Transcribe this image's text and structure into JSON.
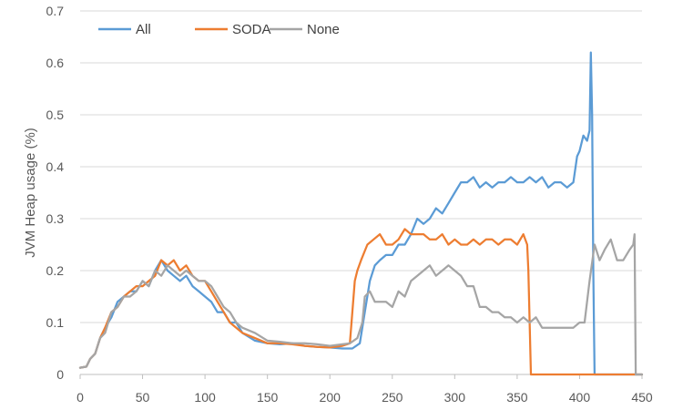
{
  "chart_data": {
    "type": "line",
    "ylabel": "JVM Heap usage (%)",
    "xlabel": "",
    "xlim": [
      0,
      450
    ],
    "ylim": [
      0,
      0.7
    ],
    "x_ticks": [
      0,
      50,
      100,
      150,
      200,
      250,
      300,
      350,
      400,
      450
    ],
    "x_tick_labels": [
      "0",
      "50",
      "100",
      "150",
      "200",
      "250",
      "300",
      "350",
      "400",
      "450"
    ],
    "y_ticks": [
      0,
      0.1,
      0.2,
      0.3,
      0.4,
      0.5,
      0.6,
      0.7
    ],
    "y_tick_labels": [
      "0",
      "0.1",
      "0.2",
      "0.3",
      "0.4",
      "0.5",
      "0.6",
      "0.7"
    ],
    "grid": "horizontal",
    "legend_position": "top-left",
    "series": [
      {
        "name": "All",
        "color": "#5B9BD5",
        "x": [
          0,
          5,
          8,
          12,
          16,
          20,
          25,
          30,
          35,
          40,
          45,
          50,
          55,
          60,
          65,
          70,
          75,
          80,
          85,
          90,
          95,
          100,
          105,
          110,
          115,
          120,
          125,
          130,
          140,
          150,
          160,
          170,
          180,
          190,
          200,
          210,
          218,
          224,
          228,
          232,
          236,
          240,
          245,
          250,
          255,
          260,
          265,
          270,
          275,
          280,
          285,
          290,
          295,
          300,
          305,
          310,
          315,
          320,
          325,
          330,
          335,
          340,
          345,
          350,
          355,
          360,
          365,
          370,
          375,
          380,
          385,
          390,
          395,
          398,
          400,
          403,
          406,
          408,
          409,
          410,
          411,
          412,
          450
        ],
        "y": [
          0.013,
          0.015,
          0.03,
          0.04,
          0.07,
          0.09,
          0.11,
          0.14,
          0.15,
          0.16,
          0.16,
          0.18,
          0.17,
          0.2,
          0.22,
          0.2,
          0.19,
          0.18,
          0.19,
          0.17,
          0.16,
          0.15,
          0.14,
          0.12,
          0.12,
          0.1,
          0.1,
          0.08,
          0.065,
          0.06,
          0.058,
          0.06,
          0.055,
          0.053,
          0.052,
          0.05,
          0.05,
          0.06,
          0.12,
          0.18,
          0.21,
          0.22,
          0.23,
          0.23,
          0.25,
          0.25,
          0.27,
          0.3,
          0.29,
          0.3,
          0.32,
          0.31,
          0.33,
          0.35,
          0.37,
          0.37,
          0.38,
          0.36,
          0.37,
          0.36,
          0.37,
          0.37,
          0.38,
          0.37,
          0.37,
          0.38,
          0.37,
          0.38,
          0.36,
          0.37,
          0.37,
          0.36,
          0.37,
          0.42,
          0.43,
          0.46,
          0.45,
          0.47,
          0.62,
          0.5,
          0.2,
          0.0,
          0.0
        ]
      },
      {
        "name": "SODA",
        "color": "#ED7D31",
        "x": [
          0,
          5,
          8,
          12,
          16,
          20,
          25,
          30,
          35,
          40,
          45,
          50,
          55,
          60,
          65,
          70,
          75,
          80,
          85,
          90,
          95,
          100,
          105,
          110,
          115,
          120,
          125,
          130,
          140,
          150,
          160,
          170,
          180,
          190,
          200,
          210,
          216,
          218,
          220,
          222,
          225,
          230,
          235,
          240,
          245,
          250,
          255,
          260,
          265,
          270,
          275,
          280,
          285,
          290,
          295,
          300,
          305,
          310,
          315,
          320,
          325,
          330,
          335,
          340,
          345,
          350,
          355,
          358,
          359,
          360,
          361,
          450
        ],
        "y": [
          0.013,
          0.015,
          0.03,
          0.04,
          0.07,
          0.09,
          0.12,
          0.13,
          0.15,
          0.16,
          0.17,
          0.17,
          0.18,
          0.19,
          0.22,
          0.21,
          0.22,
          0.2,
          0.21,
          0.19,
          0.18,
          0.18,
          0.16,
          0.14,
          0.12,
          0.1,
          0.09,
          0.08,
          0.07,
          0.06,
          0.06,
          0.058,
          0.055,
          0.053,
          0.052,
          0.055,
          0.06,
          0.12,
          0.18,
          0.2,
          0.22,
          0.25,
          0.26,
          0.27,
          0.25,
          0.25,
          0.26,
          0.28,
          0.27,
          0.27,
          0.27,
          0.26,
          0.26,
          0.27,
          0.25,
          0.26,
          0.25,
          0.25,
          0.26,
          0.25,
          0.26,
          0.26,
          0.25,
          0.26,
          0.26,
          0.25,
          0.27,
          0.25,
          0.2,
          0.1,
          0.0,
          0.0
        ]
      },
      {
        "name": "None",
        "color": "#A5A5A5",
        "x": [
          0,
          5,
          8,
          12,
          16,
          20,
          25,
          30,
          35,
          40,
          45,
          50,
          55,
          60,
          65,
          70,
          75,
          80,
          85,
          90,
          95,
          100,
          105,
          110,
          115,
          120,
          125,
          130,
          140,
          150,
          160,
          170,
          180,
          190,
          200,
          210,
          216,
          222,
          226,
          228,
          232,
          236,
          240,
          245,
          250,
          255,
          260,
          265,
          270,
          275,
          280,
          285,
          290,
          295,
          300,
          305,
          310,
          315,
          320,
          325,
          330,
          335,
          340,
          345,
          350,
          355,
          360,
          365,
          370,
          375,
          380,
          385,
          390,
          395,
          400,
          404,
          408,
          412,
          416,
          420,
          425,
          430,
          435,
          440,
          443,
          444,
          445,
          450
        ],
        "y": [
          0.013,
          0.015,
          0.03,
          0.04,
          0.07,
          0.08,
          0.12,
          0.13,
          0.15,
          0.15,
          0.16,
          0.18,
          0.17,
          0.2,
          0.19,
          0.21,
          0.2,
          0.19,
          0.2,
          0.19,
          0.18,
          0.18,
          0.17,
          0.15,
          0.13,
          0.12,
          0.1,
          0.09,
          0.08,
          0.065,
          0.063,
          0.06,
          0.06,
          0.058,
          0.055,
          0.058,
          0.06,
          0.07,
          0.1,
          0.15,
          0.16,
          0.14,
          0.14,
          0.14,
          0.13,
          0.16,
          0.15,
          0.18,
          0.19,
          0.2,
          0.21,
          0.19,
          0.2,
          0.21,
          0.2,
          0.19,
          0.17,
          0.17,
          0.13,
          0.13,
          0.12,
          0.12,
          0.11,
          0.11,
          0.1,
          0.11,
          0.1,
          0.11,
          0.09,
          0.09,
          0.09,
          0.09,
          0.09,
          0.09,
          0.1,
          0.1,
          0.18,
          0.25,
          0.22,
          0.24,
          0.26,
          0.22,
          0.22,
          0.24,
          0.25,
          0.27,
          0.0,
          0.0
        ]
      }
    ]
  }
}
